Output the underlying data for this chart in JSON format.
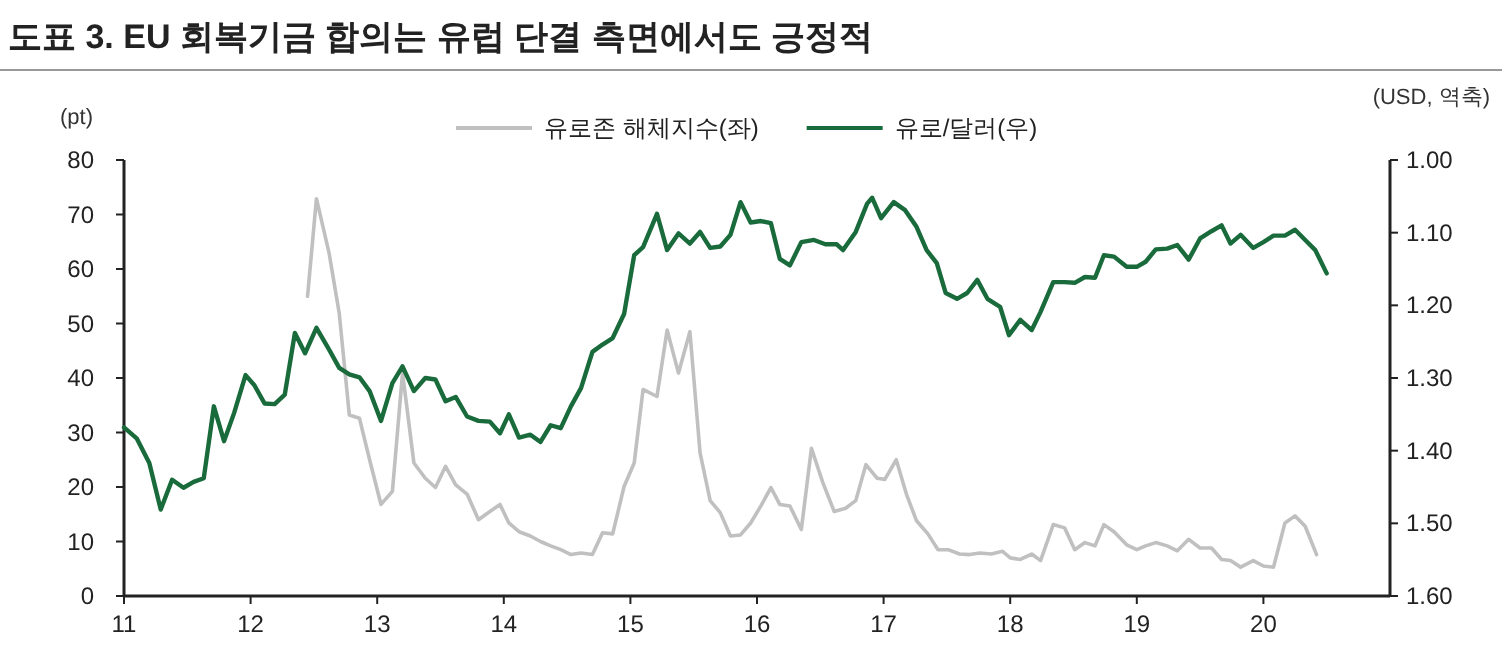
{
  "chart_data": {
    "type": "line",
    "title": "도표 3. EU 회복기금 합의는 유럽 단결 측면에서도 긍정적",
    "ylabel": "(pt)",
    "y2label": "(USD, 역축)",
    "legend": "top",
    "grid": false,
    "xlim": [
      11,
      21
    ],
    "xticks": [
      11,
      12,
      13,
      14,
      15,
      16,
      17,
      18,
      19,
      20
    ],
    "ylim": [
      0,
      80
    ],
    "yticks": [
      0,
      10,
      20,
      30,
      40,
      50,
      60,
      70,
      80
    ],
    "y2lim": [
      1.6,
      1.0
    ],
    "y2ticks": [
      {
        "value": 1.0,
        "label": "1.00"
      },
      {
        "value": 1.1,
        "label": "1.10"
      },
      {
        "value": 1.2,
        "label": "1.20"
      },
      {
        "value": 1.3,
        "label": "1.30"
      },
      {
        "value": 1.4,
        "label": "1.40"
      },
      {
        "value": 1.5,
        "label": "1.50"
      },
      {
        "value": 1.6,
        "label": "1.60"
      }
    ],
    "series": [
      {
        "name": "유로존 해체지수(좌)",
        "color": "#c0c0c0",
        "axis": "y",
        "x": [
          12.45,
          12.52,
          12.62,
          12.7,
          12.78,
          12.86,
          12.94,
          13.03,
          13.12,
          13.2,
          13.29,
          13.38,
          13.46,
          13.54,
          13.62,
          13.71,
          13.8,
          13.89,
          13.97,
          14.04,
          14.12,
          14.21,
          14.29,
          14.37,
          14.45,
          14.53,
          14.61,
          14.7,
          14.78,
          14.86,
          14.95,
          15.03,
          15.1,
          15.21,
          15.29,
          15.38,
          15.47,
          15.55,
          15.63,
          15.71,
          15.79,
          15.87,
          15.95,
          16.03,
          16.11,
          16.18,
          16.26,
          16.35,
          16.43,
          16.52,
          16.61,
          16.7,
          16.78,
          16.86,
          16.95,
          17.01,
          17.1,
          17.18,
          17.26,
          17.35,
          17.43,
          17.51,
          17.6,
          17.68,
          17.76,
          17.85,
          17.94,
          18.0,
          18.08,
          18.17,
          18.24,
          18.34,
          18.43,
          18.51,
          18.59,
          18.67,
          18.74,
          18.82,
          18.92,
          19.0,
          19.07,
          19.15,
          19.24,
          19.32,
          19.41,
          19.5,
          19.59,
          19.67,
          19.74,
          19.82,
          19.92,
          20.0,
          20.08,
          20.17,
          20.25,
          20.33,
          20.42
        ],
        "values": [
          55,
          72.9,
          62.9,
          51.9,
          33.2,
          32.6,
          25,
          16.8,
          19.2,
          40.9,
          24.4,
          21.6,
          19.9,
          23.8,
          20.4,
          18.7,
          14,
          15.5,
          16.8,
          13.4,
          11.8,
          11,
          10,
          9.2,
          8.5,
          7.6,
          7.9,
          7.6,
          11.6,
          11.4,
          20.1,
          24.4,
          37.9,
          36.6,
          48.8,
          40.9,
          48.5,
          26.3,
          17.5,
          15.3,
          11,
          11.2,
          13.4,
          16.5,
          19.9,
          16.8,
          16.5,
          12.2,
          27.1,
          20.8,
          15.5,
          16.1,
          17.5,
          24.1,
          21.6,
          21.4,
          25,
          18.7,
          13.8,
          11.4,
          8.5,
          8.5,
          7.7,
          7.6,
          7.9,
          7.7,
          8.2,
          7,
          6.7,
          7.7,
          6.5,
          13.1,
          12.5,
          8.5,
          9.8,
          9.2,
          13.1,
          11.8,
          9.4,
          8.5,
          9.2,
          9.8,
          9.2,
          8.3,
          10.4,
          8.8,
          8.8,
          6.7,
          6.5,
          5.3,
          6.5,
          5.5,
          5.3,
          13.4,
          14.7,
          12.8,
          7.6
        ]
      },
      {
        "name": "유로/달러(우)",
        "color": "#1a6b3c",
        "axis": "y2",
        "x": [
          11.0,
          11.1,
          11.2,
          11.29,
          11.38,
          11.47,
          11.55,
          11.63,
          11.71,
          11.79,
          11.87,
          11.96,
          12.03,
          12.11,
          12.19,
          12.27,
          12.35,
          12.43,
          12.52,
          12.62,
          12.7,
          12.78,
          12.86,
          12.94,
          13.03,
          13.12,
          13.2,
          13.29,
          13.38,
          13.46,
          13.54,
          13.62,
          13.71,
          13.8,
          13.89,
          13.97,
          14.04,
          14.12,
          14.21,
          14.29,
          14.37,
          14.45,
          14.53,
          14.61,
          14.7,
          14.78,
          14.86,
          14.95,
          15.03,
          15.1,
          15.21,
          15.29,
          15.38,
          15.47,
          15.55,
          15.63,
          15.71,
          15.79,
          15.87,
          15.95,
          16.03,
          16.11,
          16.18,
          16.26,
          16.35,
          16.45,
          16.54,
          16.63,
          16.68,
          16.78,
          16.87,
          16.91,
          16.98,
          17.08,
          17.17,
          17.26,
          17.34,
          17.42,
          17.49,
          17.58,
          17.66,
          17.74,
          17.82,
          17.92,
          17.99,
          18.08,
          18.17,
          18.24,
          18.34,
          18.43,
          18.51,
          18.59,
          18.67,
          18.74,
          18.82,
          18.92,
          19.0,
          19.07,
          19.15,
          19.24,
          19.32,
          19.41,
          19.5,
          19.59,
          19.67,
          19.74,
          19.82,
          19.92,
          20.0,
          20.08,
          20.17,
          20.25,
          20.33,
          20.41,
          20.5
        ],
        "values": [
          1.368,
          1.383,
          1.417,
          1.481,
          1.44,
          1.451,
          1.443,
          1.438,
          1.339,
          1.387,
          1.348,
          1.296,
          1.31,
          1.335,
          1.336,
          1.323,
          1.238,
          1.266,
          1.231,
          1.261,
          1.286,
          1.295,
          1.299,
          1.318,
          1.359,
          1.307,
          1.284,
          1.318,
          1.3,
          1.302,
          1.332,
          1.326,
          1.353,
          1.359,
          1.36,
          1.376,
          1.35,
          1.382,
          1.378,
          1.388,
          1.365,
          1.369,
          1.339,
          1.314,
          1.264,
          1.254,
          1.245,
          1.212,
          1.131,
          1.12,
          1.074,
          1.124,
          1.101,
          1.115,
          1.099,
          1.121,
          1.119,
          1.103,
          1.058,
          1.086,
          1.084,
          1.087,
          1.136,
          1.145,
          1.113,
          1.11,
          1.116,
          1.116,
          1.124,
          1.099,
          1.06,
          1.052,
          1.08,
          1.058,
          1.069,
          1.092,
          1.124,
          1.142,
          1.183,
          1.191,
          1.183,
          1.165,
          1.191,
          1.202,
          1.241,
          1.22,
          1.234,
          1.209,
          1.168,
          1.168,
          1.169,
          1.161,
          1.162,
          1.131,
          1.133,
          1.147,
          1.147,
          1.14,
          1.123,
          1.122,
          1.117,
          1.137,
          1.108,
          1.098,
          1.09,
          1.115,
          1.103,
          1.121,
          1.113,
          1.104,
          1.104,
          1.096,
          1.11,
          1.124,
          1.156
        ]
      }
    ]
  }
}
